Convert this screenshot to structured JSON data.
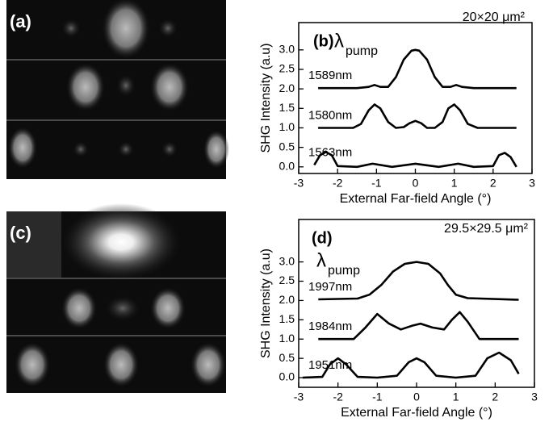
{
  "figure": {
    "panels": [
      {
        "label": "(a)"
      },
      {
        "label": "(c)"
      }
    ]
  },
  "chart_data": [
    {
      "type": "line",
      "title": "(b)",
      "annotation": "20×20 μm²",
      "lambda": {
        "symbol": "λ",
        "subscript": "pump"
      },
      "y_label": "SHG Intensity (a.u)",
      "x_label": "External Far-field Angle (°)",
      "xlim": [
        -3,
        3
      ],
      "xticks": [
        -3,
        -2,
        -1,
        0,
        1,
        2,
        3
      ],
      "ylim": [
        -0.17,
        3.7
      ],
      "yticks": [
        {
          "value": 0,
          "label": "0.0"
        },
        {
          "value": 0.5,
          "label": "0.5"
        },
        {
          "value": 1,
          "label": "1.0"
        },
        {
          "value": 1.5,
          "label": "1.5"
        },
        {
          "value": 2,
          "label": "2.0"
        },
        {
          "value": 2.5,
          "label": "2.5"
        },
        {
          "value": 3,
          "label": "3.0"
        }
      ],
      "series": [
        {
          "name": "1589nm",
          "color": "#000000",
          "x": [
            -2.5,
            -2,
            -1.5,
            -1.2,
            -1.05,
            -0.9,
            -0.7,
            -0.5,
            -0.3,
            -0.1,
            0,
            0.1,
            0.3,
            0.5,
            0.7,
            0.9,
            1.05,
            1.2,
            1.5,
            2,
            2.6
          ],
          "values": [
            2.02,
            2.02,
            2.02,
            2.05,
            2.1,
            2.05,
            2.05,
            2.3,
            2.75,
            2.98,
            3.0,
            2.98,
            2.75,
            2.3,
            2.05,
            2.05,
            2.1,
            2.05,
            2.02,
            2.02,
            2.02
          ]
        },
        {
          "name": "1580nm",
          "color": "#000000",
          "x": [
            -2.5,
            -1.6,
            -1.4,
            -1.2,
            -1.05,
            -0.9,
            -0.7,
            -0.5,
            -0.3,
            -0.15,
            0,
            0.15,
            0.3,
            0.5,
            0.7,
            0.85,
            1.0,
            1.15,
            1.35,
            1.6,
            2.6
          ],
          "values": [
            1.0,
            1.0,
            1.1,
            1.45,
            1.6,
            1.5,
            1.15,
            1.0,
            1.02,
            1.12,
            1.18,
            1.12,
            1.0,
            1.0,
            1.15,
            1.5,
            1.6,
            1.45,
            1.1,
            1.0,
            1.0
          ]
        },
        {
          "name": "1563nm",
          "color": "#000000",
          "x": [
            -2.6,
            -2.45,
            -2.3,
            -2.15,
            -2.0,
            -1.5,
            -1.1,
            -0.6,
            0,
            0.6,
            1.1,
            1.5,
            2.0,
            2.15,
            2.3,
            2.45,
            2.6
          ],
          "values": [
            0.05,
            0.3,
            0.38,
            0.3,
            0.02,
            0.0,
            0.08,
            0.0,
            0.08,
            0.0,
            0.08,
            0.0,
            0.02,
            0.3,
            0.36,
            0.25,
            0.0
          ]
        }
      ]
    },
    {
      "type": "line",
      "title": "(d)",
      "annotation": "29.5×29.5 μm²",
      "lambda": {
        "symbol": "λ",
        "subscript": "pump"
      },
      "y_label": "SHG Intensity (a.u)",
      "x_label": "External Far-field Angle (°)",
      "xlim": [
        -3,
        3
      ],
      "xticks": [
        -3,
        -2,
        -1,
        0,
        1,
        2,
        3
      ],
      "ylim": [
        -0.25,
        4.1
      ],
      "yticks": [
        {
          "value": 0,
          "label": "0.0"
        },
        {
          "value": 0.5,
          "label": "0.5"
        },
        {
          "value": 1,
          "label": "1.0"
        },
        {
          "value": 1.5,
          "label": "1.5"
        },
        {
          "value": 2,
          "label": "2.0"
        },
        {
          "value": 2.5,
          "label": "2.5"
        },
        {
          "value": 3,
          "label": "3.0"
        }
      ],
      "series": [
        {
          "name": "1997nm",
          "color": "#000000",
          "x": [
            -2.5,
            -1.5,
            -1.2,
            -0.9,
            -0.6,
            -0.3,
            0,
            0.3,
            0.6,
            0.8,
            1.0,
            1.3,
            2.6
          ],
          "values": [
            2.03,
            2.05,
            2.15,
            2.4,
            2.75,
            2.95,
            3.0,
            2.95,
            2.7,
            2.4,
            2.15,
            2.06,
            2.02
          ]
        },
        {
          "name": "1984nm",
          "color": "#000000",
          "x": [
            -2.5,
            -1.6,
            -1.3,
            -1.0,
            -0.7,
            -0.4,
            -0.1,
            0.1,
            0.4,
            0.7,
            0.9,
            1.1,
            1.3,
            1.6,
            2.6
          ],
          "values": [
            1.0,
            1.0,
            1.3,
            1.65,
            1.4,
            1.25,
            1.35,
            1.4,
            1.3,
            1.25,
            1.5,
            1.7,
            1.45,
            1.0,
            1.0
          ]
        },
        {
          "name": "1951nm",
          "color": "#000000",
          "x": [
            -2.9,
            -2.4,
            -2.2,
            -2.0,
            -1.8,
            -1.5,
            -1.0,
            -0.5,
            -0.2,
            0,
            0.2,
            0.5,
            1.0,
            1.5,
            1.8,
            2.1,
            2.4,
            2.6
          ],
          "values": [
            0.0,
            0.02,
            0.35,
            0.5,
            0.35,
            0.02,
            0.0,
            0.05,
            0.4,
            0.5,
            0.4,
            0.05,
            0.0,
            0.05,
            0.5,
            0.65,
            0.45,
            0.1
          ]
        }
      ]
    }
  ]
}
